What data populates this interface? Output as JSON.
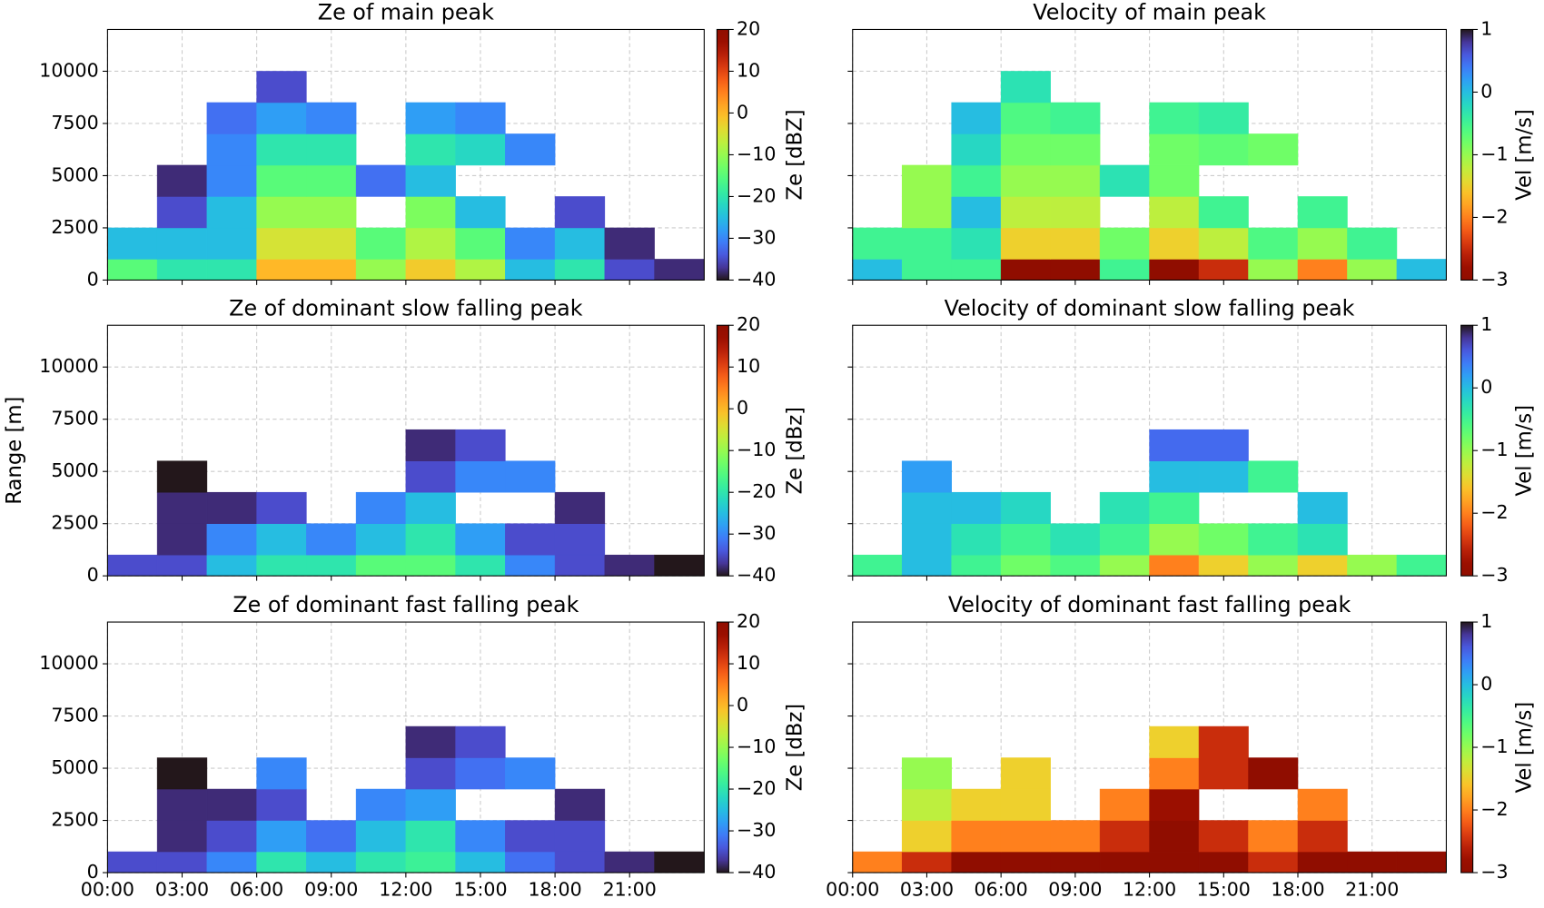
{
  "chart_data": [
    {
      "type": "heatmap",
      "title": "Ze of main peak",
      "clabel": "Ze [dBZ]",
      "colormap": "turbo",
      "clim": [
        -40,
        20
      ],
      "cticks": [
        {
          "value": -40,
          "label": "−40"
        },
        {
          "value": -30,
          "label": "−30"
        },
        {
          "value": -20,
          "label": "−20"
        },
        {
          "value": -10,
          "label": "−10"
        },
        0,
        10,
        20
      ],
      "xlim": [
        0,
        24
      ],
      "ylim": [
        0,
        12000
      ],
      "xticks": [
        0,
        3,
        6,
        9,
        12,
        15,
        18,
        21
      ],
      "yticks": [
        0,
        2500,
        5000,
        7500,
        10000
      ],
      "show_xticklabels": false,
      "show_yticklabels": true,
      "grid": true,
      "xbins": [
        0,
        2,
        4,
        6,
        8,
        10,
        12,
        14,
        16,
        18,
        20,
        22,
        24
      ],
      "ybins": [
        0,
        1000,
        2500,
        4000,
        5500,
        7000,
        8500,
        10000
      ],
      "z": [
        [
          -15,
          -20,
          -20,
          0,
          0,
          -10,
          -2,
          -8,
          -25,
          -20,
          -35,
          -38
        ],
        [
          -25,
          -25,
          -25,
          -5,
          -5,
          -15,
          -8,
          -15,
          -30,
          -25,
          -38,
          null
        ],
        [
          null,
          -35,
          -25,
          -10,
          -10,
          null,
          -12,
          -25,
          null,
          -35,
          null,
          null
        ],
        [
          null,
          -38,
          -30,
          -15,
          -15,
          -32,
          -25,
          null,
          null,
          null,
          null,
          null
        ],
        [
          null,
          null,
          -30,
          -20,
          -20,
          null,
          -20,
          -22,
          -30,
          null,
          null,
          null
        ],
        [
          null,
          null,
          -32,
          -28,
          -30,
          null,
          -28,
          -30,
          null,
          null,
          null,
          null
        ],
        [
          null,
          null,
          null,
          -35,
          null,
          null,
          null,
          null,
          null,
          null,
          null,
          null
        ]
      ]
    },
    {
      "type": "heatmap",
      "title": "Velocity of main peak",
      "clabel": "Vel [m/s]",
      "colormap": "turbo_r",
      "clim": [
        -3,
        1
      ],
      "cticks": [
        {
          "value": -3,
          "label": "−3"
        },
        {
          "value": -2,
          "label": "−2"
        },
        {
          "value": -1,
          "label": "−1"
        },
        0,
        1
      ],
      "xlim": [
        0,
        24
      ],
      "ylim": [
        0,
        12000
      ],
      "xticks": [
        0,
        3,
        6,
        9,
        12,
        15,
        18,
        21
      ],
      "yticks": [
        0,
        2500,
        5000,
        7500,
        10000
      ],
      "show_xticklabels": false,
      "show_yticklabels": false,
      "grid": true,
      "xbins": [
        0,
        2,
        4,
        6,
        8,
        10,
        12,
        14,
        16,
        18,
        20,
        22,
        24
      ],
      "ybins": [
        0,
        1000,
        2500,
        4000,
        5500,
        7000,
        8500,
        10000
      ],
      "z": [
        [
          0,
          -0.5,
          -0.5,
          -3,
          -3,
          -0.5,
          -3,
          -2.5,
          -1,
          -2,
          -1,
          0
        ],
        [
          -0.5,
          -0.5,
          -0.3,
          -1.5,
          -1.5,
          -0.8,
          -1.5,
          -1.2,
          -0.6,
          -1,
          -0.5,
          null
        ],
        [
          null,
          -1,
          0,
          -1.2,
          -1.2,
          null,
          -1.2,
          -0.5,
          null,
          -0.5,
          null,
          null
        ],
        [
          null,
          -1,
          -0.5,
          -1,
          -1,
          -0.3,
          -0.8,
          null,
          null,
          null,
          null,
          null
        ],
        [
          null,
          null,
          -0.2,
          -0.8,
          -0.8,
          null,
          -0.8,
          -0.7,
          -0.8,
          null,
          null,
          null
        ],
        [
          null,
          null,
          0,
          -0.6,
          -0.5,
          null,
          -0.5,
          -0.4,
          null,
          null,
          null,
          null
        ],
        [
          null,
          null,
          null,
          -0.3,
          null,
          null,
          null,
          null,
          null,
          null,
          null,
          null
        ]
      ]
    },
    {
      "type": "heatmap",
      "title": "Ze of dominant slow falling peak",
      "clabel": "Ze [dBz]",
      "ylabel": "Range [m]",
      "colormap": "turbo",
      "clim": [
        -40,
        20
      ],
      "cticks": [
        {
          "value": -40,
          "label": "−40"
        },
        {
          "value": -30,
          "label": "−30"
        },
        {
          "value": -20,
          "label": "−20"
        },
        {
          "value": -10,
          "label": "−10"
        },
        0,
        10,
        20
      ],
      "xlim": [
        0,
        24
      ],
      "ylim": [
        0,
        12000
      ],
      "xticks": [
        0,
        3,
        6,
        9,
        12,
        15,
        18,
        21
      ],
      "yticks": [
        0,
        2500,
        5000,
        7500,
        10000
      ],
      "show_xticklabels": false,
      "show_yticklabels": true,
      "grid": true,
      "xbins": [
        0,
        2,
        4,
        6,
        8,
        10,
        12,
        14,
        16,
        18,
        20,
        22,
        24
      ],
      "ybins": [
        0,
        1000,
        2500,
        4000,
        5500,
        7000,
        8500,
        10000
      ],
      "z": [
        [
          -35,
          -35,
          -25,
          -20,
          -20,
          -15,
          -15,
          -20,
          -30,
          -35,
          -38,
          -40
        ],
        [
          null,
          -38,
          -30,
          -25,
          -30,
          -25,
          -20,
          -28,
          -35,
          -35,
          null,
          null
        ],
        [
          null,
          -38,
          -38,
          -35,
          null,
          -30,
          -25,
          null,
          null,
          -38,
          null,
          null
        ],
        [
          null,
          -40,
          null,
          null,
          null,
          null,
          -35,
          -30,
          -30,
          null,
          null,
          null
        ],
        [
          null,
          null,
          null,
          null,
          null,
          null,
          -38,
          -35,
          null,
          null,
          null,
          null
        ],
        [
          null,
          null,
          null,
          null,
          null,
          null,
          null,
          null,
          null,
          null,
          null,
          null
        ],
        [
          null,
          null,
          null,
          null,
          null,
          null,
          null,
          null,
          null,
          null,
          null,
          null
        ]
      ]
    },
    {
      "type": "heatmap",
      "title": "Velocity of dominant slow falling peak",
      "clabel": "Vel [m/s]",
      "colormap": "turbo_r",
      "clim": [
        -3,
        1
      ],
      "cticks": [
        {
          "value": -3,
          "label": "−3"
        },
        {
          "value": -2,
          "label": "−2"
        },
        {
          "value": -1,
          "label": "−1"
        },
        0,
        1
      ],
      "xlim": [
        0,
        24
      ],
      "ylim": [
        0,
        12000
      ],
      "xticks": [
        0,
        3,
        6,
        9,
        12,
        15,
        18,
        21
      ],
      "yticks": [
        0,
        2500,
        5000,
        7500,
        10000
      ],
      "show_xticklabels": false,
      "show_yticklabels": false,
      "grid": true,
      "xbins": [
        0,
        2,
        4,
        6,
        8,
        10,
        12,
        14,
        16,
        18,
        20,
        22,
        24
      ],
      "ybins": [
        0,
        1000,
        2500,
        4000,
        5500,
        7000,
        8500,
        10000
      ],
      "z": [
        [
          -0.5,
          0,
          -0.5,
          -0.8,
          -0.6,
          -1,
          -2,
          -1.5,
          -1,
          -1.5,
          -1,
          -0.5
        ],
        [
          null,
          0,
          -0.3,
          -0.5,
          -0.3,
          -0.5,
          -1,
          -0.8,
          -0.5,
          -0.3,
          null,
          null
        ],
        [
          null,
          0,
          0,
          -0.2,
          null,
          -0.3,
          -0.5,
          null,
          null,
          0,
          null,
          null
        ],
        [
          null,
          0.2,
          null,
          null,
          null,
          null,
          0,
          0,
          -0.5,
          null,
          null,
          null
        ],
        [
          null,
          null,
          null,
          null,
          null,
          null,
          0.5,
          0.5,
          null,
          null,
          null,
          null
        ],
        [
          null,
          null,
          null,
          null,
          null,
          null,
          null,
          null,
          null,
          null,
          null,
          null
        ],
        [
          null,
          null,
          null,
          null,
          null,
          null,
          null,
          null,
          null,
          null,
          null,
          null
        ]
      ]
    },
    {
      "type": "heatmap",
      "title": "Ze of dominant fast falling peak",
      "clabel": "Ze [dBz]",
      "colormap": "turbo",
      "clim": [
        -40,
        20
      ],
      "cticks": [
        {
          "value": -40,
          "label": "−40"
        },
        {
          "value": -30,
          "label": "−30"
        },
        {
          "value": -20,
          "label": "−20"
        },
        {
          "value": -10,
          "label": "−10"
        },
        0,
        10,
        20
      ],
      "xlim": [
        0,
        24
      ],
      "ylim": [
        0,
        12000
      ],
      "xticks": [
        {
          "value": 0,
          "label": "00:00"
        },
        {
          "value": 3,
          "label": "03:00"
        },
        {
          "value": 6,
          "label": "06:00"
        },
        {
          "value": 9,
          "label": "09:00"
        },
        {
          "value": 12,
          "label": "12:00"
        },
        {
          "value": 15,
          "label": "15:00"
        },
        {
          "value": 18,
          "label": "18:00"
        },
        {
          "value": 21,
          "label": "21:00"
        }
      ],
      "yticks": [
        0,
        2500,
        5000,
        7500,
        10000
      ],
      "show_xticklabels": true,
      "show_yticklabels": true,
      "grid": true,
      "xbins": [
        0,
        2,
        4,
        6,
        8,
        10,
        12,
        14,
        16,
        18,
        20,
        22,
        24
      ],
      "ybins": [
        0,
        1000,
        2500,
        4000,
        5500,
        7000,
        8500,
        10000
      ],
      "z": [
        [
          -35,
          -35,
          -30,
          -20,
          -25,
          -20,
          -18,
          -25,
          -32,
          -35,
          -38,
          -40
        ],
        [
          null,
          -38,
          -35,
          -28,
          -32,
          -25,
          -20,
          -30,
          -35,
          -35,
          null,
          null
        ],
        [
          null,
          -38,
          -38,
          -35,
          null,
          -30,
          -28,
          null,
          null,
          -38,
          null,
          null
        ],
        [
          null,
          -40,
          null,
          -30,
          null,
          null,
          -35,
          -32,
          -30,
          null,
          null,
          null
        ],
        [
          null,
          null,
          null,
          null,
          null,
          null,
          -38,
          -35,
          null,
          null,
          null,
          null
        ],
        [
          null,
          null,
          null,
          null,
          null,
          null,
          null,
          null,
          null,
          null,
          null,
          null
        ],
        [
          null,
          null,
          null,
          null,
          null,
          null,
          null,
          null,
          null,
          null,
          null,
          null
        ]
      ]
    },
    {
      "type": "heatmap",
      "title": "Velocity of dominant fast falling peak",
      "clabel": "Vel [m/s]",
      "colormap": "turbo_r",
      "clim": [
        -3,
        1
      ],
      "cticks": [
        {
          "value": -3,
          "label": "−3"
        },
        {
          "value": -2,
          "label": "−2"
        },
        {
          "value": -1,
          "label": "−1"
        },
        0,
        1
      ],
      "xlim": [
        0,
        24
      ],
      "ylim": [
        0,
        12000
      ],
      "xticks": [
        {
          "value": 0,
          "label": "00:00"
        },
        {
          "value": 3,
          "label": "03:00"
        },
        {
          "value": 6,
          "label": "06:00"
        },
        {
          "value": 9,
          "label": "09:00"
        },
        {
          "value": 12,
          "label": "12:00"
        },
        {
          "value": 15,
          "label": "15:00"
        },
        {
          "value": 18,
          "label": "18:00"
        },
        {
          "value": 21,
          "label": "21:00"
        }
      ],
      "yticks": [
        0,
        2500,
        5000,
        7500,
        10000
      ],
      "show_xticklabels": true,
      "show_yticklabels": false,
      "grid": true,
      "xbins": [
        0,
        2,
        4,
        6,
        8,
        10,
        12,
        14,
        16,
        18,
        20,
        22,
        24
      ],
      "ybins": [
        0,
        1000,
        2500,
        4000,
        5500,
        7000,
        8500,
        10000
      ],
      "z": [
        [
          -2,
          -2.5,
          -3,
          -3,
          -3,
          -3,
          -3,
          -3,
          -2.5,
          -3,
          -3,
          -3
        ],
        [
          null,
          -1.5,
          -2,
          -2,
          -2,
          -2.5,
          -3,
          -2.5,
          -2,
          -2.5,
          null,
          null
        ],
        [
          null,
          -1.2,
          -1.5,
          -1.5,
          null,
          -2,
          -2.8,
          null,
          null,
          -2,
          null,
          null
        ],
        [
          null,
          -1,
          null,
          -1.5,
          null,
          null,
          -2,
          -2.5,
          -3,
          null,
          null,
          null
        ],
        [
          null,
          null,
          null,
          null,
          null,
          null,
          -1.5,
          -2.5,
          null,
          null,
          null,
          null
        ],
        [
          null,
          null,
          null,
          null,
          null,
          null,
          null,
          null,
          null,
          null,
          null,
          null
        ],
        [
          null,
          null,
          null,
          null,
          null,
          null,
          null,
          null,
          null,
          null,
          null,
          null
        ]
      ]
    }
  ]
}
